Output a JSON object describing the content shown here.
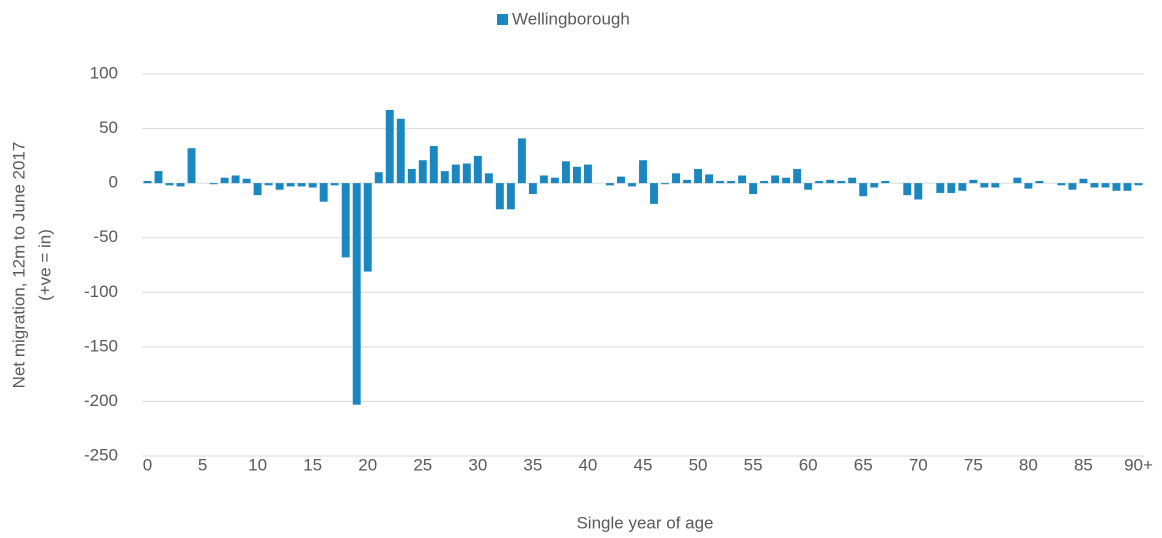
{
  "chart_data": {
    "type": "bar",
    "legend": "top",
    "ylabel": [
      "Net migration, 12m to June 2017",
      "(+ve = in)"
    ],
    "xlabel": "Single year of age",
    "categories": [
      "0",
      null,
      null,
      null,
      null,
      "5",
      null,
      null,
      null,
      null,
      "10",
      null,
      null,
      null,
      null,
      "15",
      null,
      null,
      null,
      null,
      "20",
      null,
      null,
      null,
      null,
      "25",
      null,
      null,
      null,
      null,
      "30",
      null,
      null,
      null,
      null,
      "35",
      null,
      null,
      null,
      null,
      "40",
      null,
      null,
      null,
      null,
      "45",
      null,
      null,
      null,
      null,
      "50",
      null,
      null,
      null,
      null,
      "55",
      null,
      null,
      null,
      null,
      "60",
      null,
      null,
      null,
      null,
      "65",
      null,
      null,
      null,
      null,
      "70",
      null,
      null,
      null,
      null,
      "75",
      null,
      null,
      null,
      null,
      "80",
      null,
      null,
      null,
      null,
      "85",
      null,
      null,
      null,
      null,
      "90+"
    ],
    "series": [
      {
        "name": "Wellingborough",
        "color": "#1b87c1",
        "values": [
          2,
          11,
          -2,
          -3,
          32,
          0,
          -1,
          5,
          7,
          4,
          -11,
          -2,
          -6,
          -3,
          -3,
          -4,
          -17,
          -2,
          -68,
          -203,
          -81,
          10,
          67,
          59,
          13,
          21,
          34,
          11,
          17,
          18,
          25,
          9,
          -24,
          -24,
          41,
          -10,
          7,
          5,
          20,
          15,
          17,
          0,
          -2,
          6,
          -3,
          21,
          -19,
          -1,
          9,
          3,
          13,
          8,
          2,
          2,
          7,
          -10,
          2,
          7,
          5,
          13,
          -6,
          2,
          3,
          2,
          5,
          -12,
          -4,
          2,
          0,
          -11,
          -15,
          0,
          -9,
          -9,
          -7,
          3,
          -4,
          -4,
          0,
          5,
          -5,
          2,
          0,
          -2,
          -6,
          4,
          -4,
          -4,
          -7,
          -7,
          -2
        ]
      }
    ],
    "ylim": [
      -250,
      100
    ],
    "yticks": [
      100,
      50,
      0,
      -50,
      -100,
      -150,
      -200,
      -250
    ],
    "grid": true
  }
}
